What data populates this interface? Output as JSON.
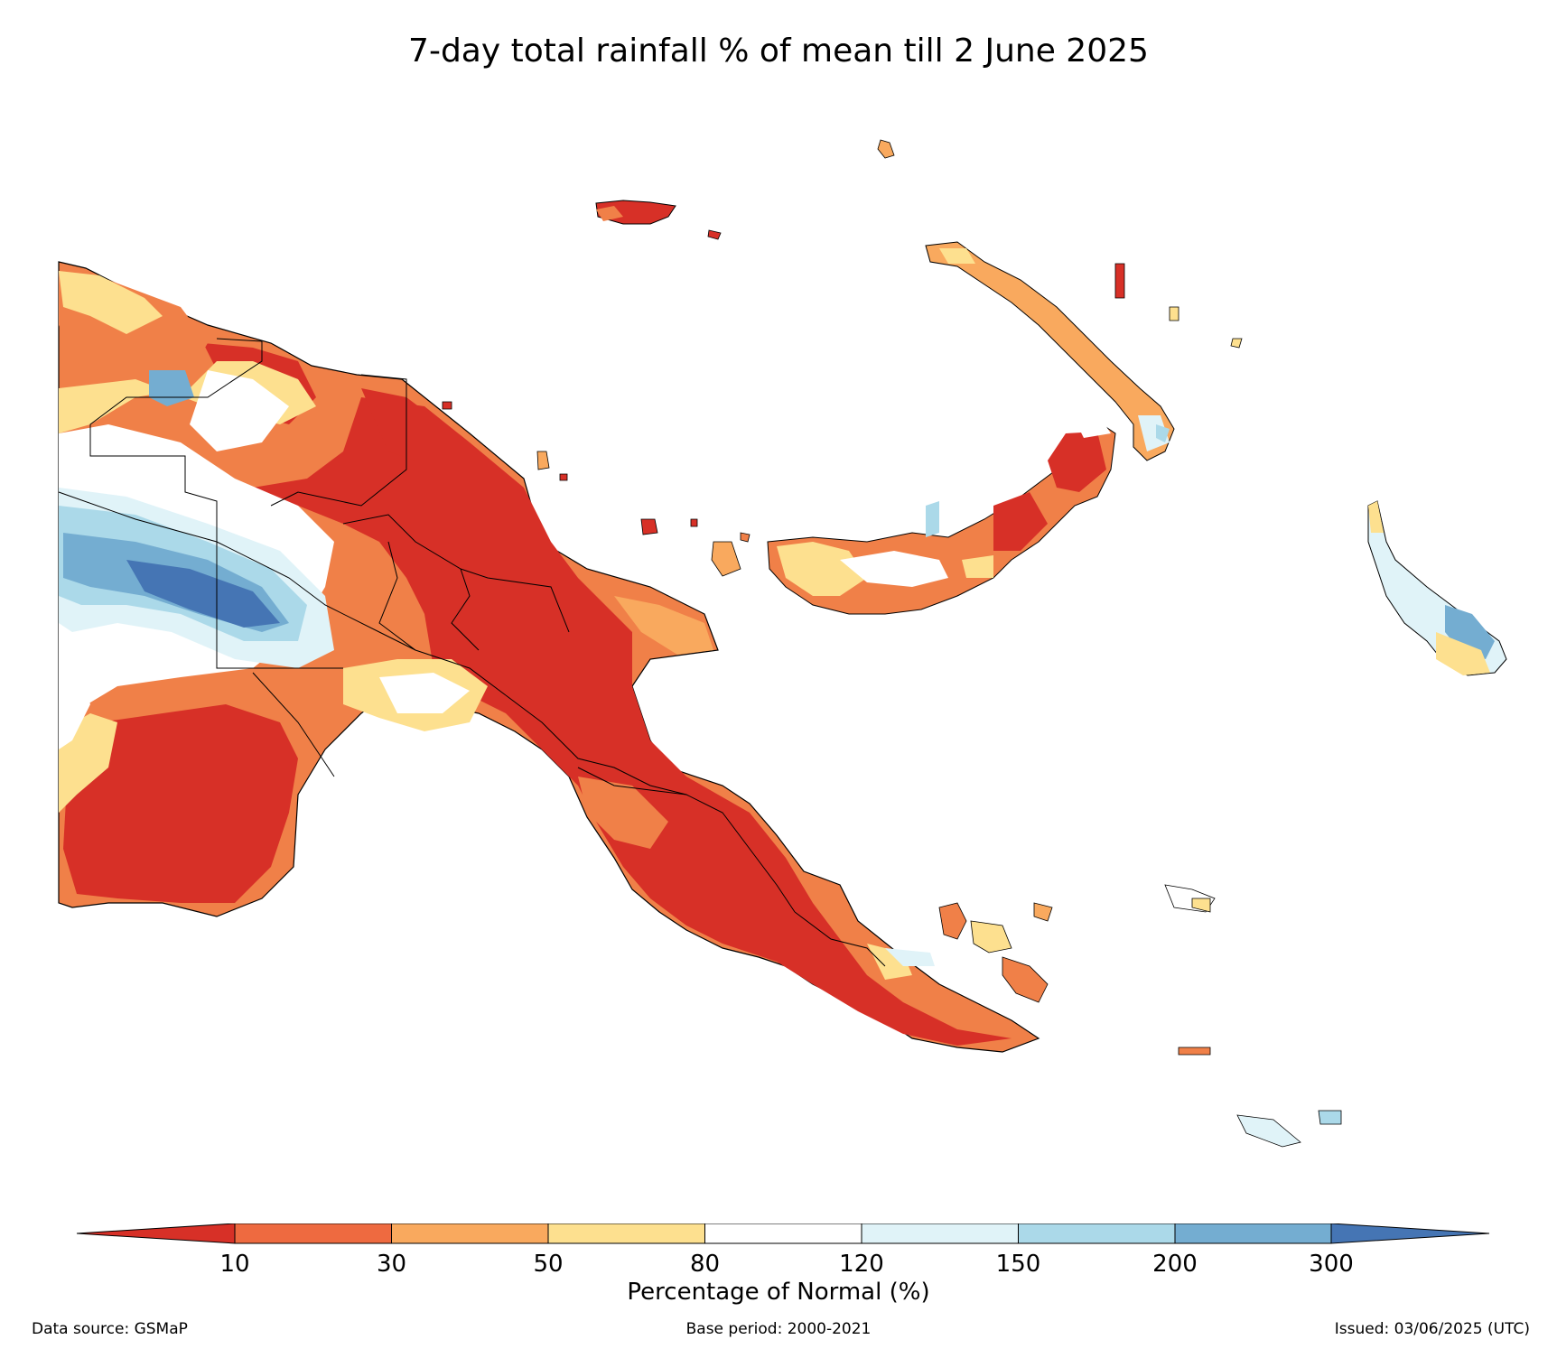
{
  "title": "7-day total rainfall % of mean till 2 June 2025",
  "colorbar": {
    "label": "Percentage of Normal (%)",
    "ticks": [
      "10",
      "30",
      "50",
      "80",
      "120",
      "150",
      "200",
      "300"
    ],
    "colors": [
      "#d73027",
      "#ee6a40",
      "#f9a95e",
      "#fde08f",
      "#ffffff",
      "#e0f3f8",
      "#abd9e9",
      "#74add1",
      "#4575b4"
    ]
  },
  "footer": {
    "source": "Data source: GSMaP",
    "base_period": "Base period: 2000-2021",
    "issued": "Issued: 03/06/2025 (UTC)"
  }
}
